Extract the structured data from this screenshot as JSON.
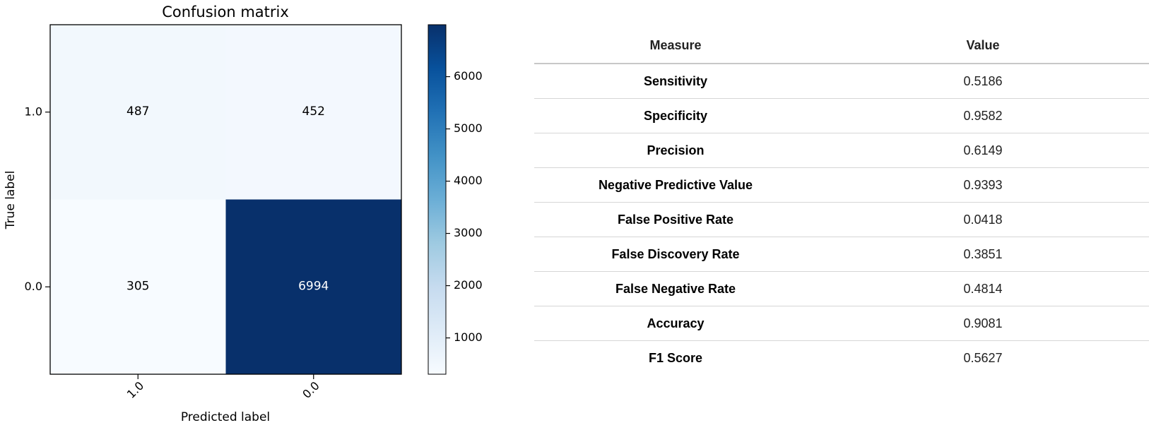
{
  "chart_data": {
    "type": "heatmap",
    "title": "Confusion matrix",
    "xlabel": "Predicted label",
    "ylabel": "True label",
    "x_categories": [
      "1.0",
      "0.0"
    ],
    "y_categories": [
      "1.0",
      "0.0"
    ],
    "matrix": [
      [
        487,
        452
      ],
      [
        305,
        6994
      ]
    ],
    "colormap": "Blues",
    "colorbar": {
      "range": [
        305,
        6994
      ],
      "ticks": [
        1000,
        2000,
        3000,
        4000,
        5000,
        6000
      ]
    },
    "colors": {
      "low": "#f7fbff",
      "high": "#08306b"
    }
  },
  "table": {
    "headers": [
      "Measure",
      "Value"
    ],
    "rows": [
      [
        "Sensitivity",
        "0.5186"
      ],
      [
        "Specificity",
        "0.9582"
      ],
      [
        "Precision",
        "0.6149"
      ],
      [
        "Negative Predictive Value",
        "0.9393"
      ],
      [
        "False Positive Rate",
        "0.0418"
      ],
      [
        "False Discovery Rate",
        "0.3851"
      ],
      [
        "False Negative Rate",
        "0.4814"
      ],
      [
        "Accuracy",
        "0.9081"
      ],
      [
        "F1 Score",
        "0.5627"
      ]
    ]
  }
}
